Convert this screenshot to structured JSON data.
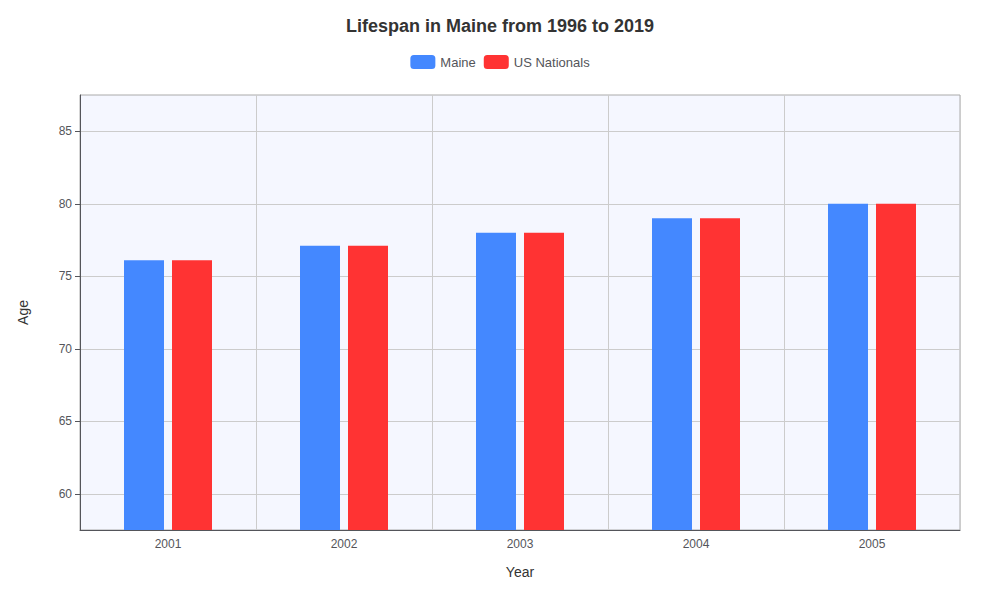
{
  "chart_data": {
    "type": "bar",
    "title": "Lifespan in Maine from 1996 to 2019",
    "xlabel": "Year",
    "ylabel": "Age",
    "categories": [
      "2001",
      "2002",
      "2003",
      "2004",
      "2005"
    ],
    "series": [
      {
        "name": "Maine",
        "color": "#4488ff",
        "values": [
          76.1,
          77.1,
          78.0,
          79.0,
          80.0
        ]
      },
      {
        "name": "US Nationals",
        "color": "#ff3333",
        "values": [
          76.1,
          77.1,
          78.0,
          79.0,
          80.0
        ]
      }
    ],
    "ylim": [
      57.5,
      87.5
    ],
    "yticks": [
      60,
      65,
      70,
      75,
      80,
      85
    ],
    "grid": true,
    "legend": "top"
  }
}
